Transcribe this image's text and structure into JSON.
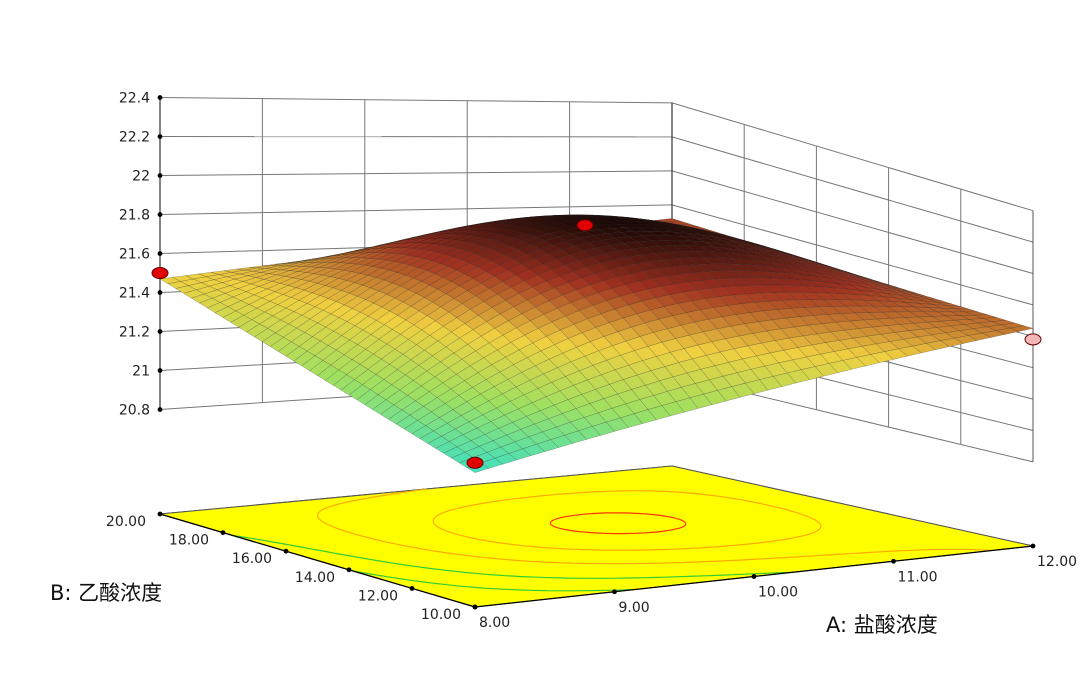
{
  "chart_data": {
    "type": "surface3d",
    "title": "",
    "xlabel": "A: 盐酸浓度",
    "ylabel": "B: 乙酸浓度",
    "zlabel": "",
    "x_ticks": [
      "8.00",
      "9.00",
      "10.00",
      "11.00",
      "12.00"
    ],
    "y_ticks": [
      "10.00",
      "12.00",
      "14.00",
      "16.00",
      "18.00",
      "20.00"
    ],
    "z_ticks": [
      "20.8",
      "21",
      "21.2",
      "21.4",
      "21.6",
      "21.8",
      "22",
      "22.2",
      "22.4"
    ],
    "xlim": [
      8,
      12
    ],
    "ylim": [
      10,
      20
    ],
    "zlim": [
      20.8,
      22.4
    ],
    "surface_corners": [
      {
        "x": 8,
        "y": 10,
        "z": 20.95
      },
      {
        "x": 12,
        "y": 10,
        "z": 21.65
      },
      {
        "x": 8,
        "y": 20,
        "z": 21.47
      },
      {
        "x": 12,
        "y": 20,
        "z": 21.72
      }
    ],
    "surface_peak": {
      "x": 10.3,
      "y": 16.5,
      "z": 22.02
    },
    "design_points": [
      {
        "x": 8,
        "y": 10,
        "z": 21.0,
        "above_surface": true
      },
      {
        "x": 8,
        "y": 20,
        "z": 21.5,
        "above_surface": true
      },
      {
        "x": 12,
        "y": 10,
        "z": 21.58,
        "above_surface": false
      },
      {
        "x": 10,
        "y": 15,
        "z": 21.98,
        "above_surface": true
      }
    ],
    "floor_color": "#ffff00",
    "contour_colors": [
      "#ff3300",
      "#ffaa00",
      "#33cc33"
    ],
    "surface_colormap": [
      "#40e0c0",
      "#a0e060",
      "#f0d040",
      "#a03020",
      "#000000"
    ],
    "grid": true
  }
}
